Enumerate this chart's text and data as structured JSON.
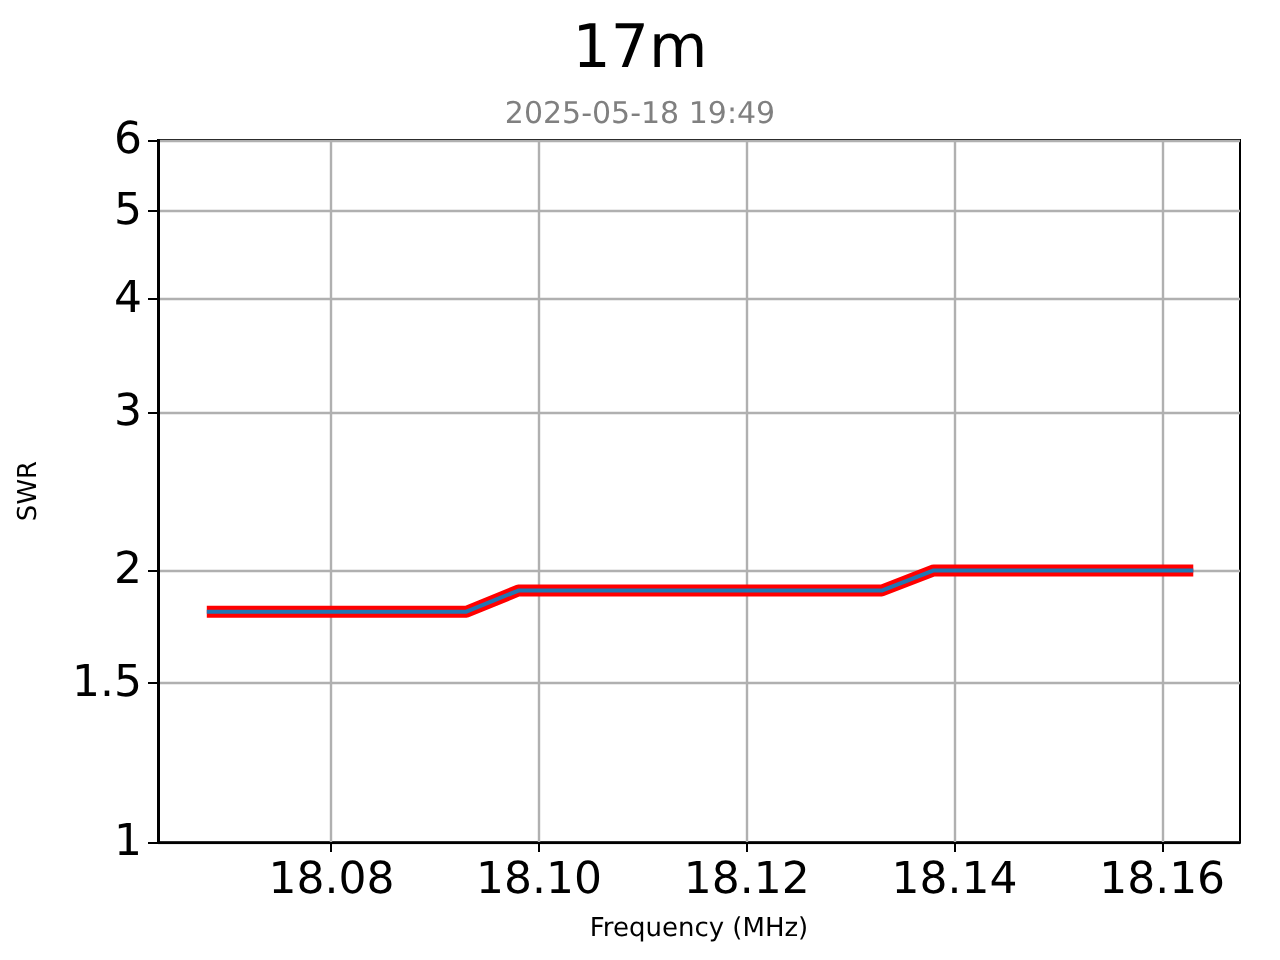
{
  "chart_data": {
    "type": "line",
    "title": "17m",
    "subtitle": "2025-05-18 19:49",
    "xlabel": "Frequency (MHz)",
    "ylabel": "SWR",
    "x": [
      18.068,
      18.073,
      18.078,
      18.083,
      18.088,
      18.093,
      18.098,
      18.103,
      18.108,
      18.113,
      18.118,
      18.123,
      18.128,
      18.133,
      18.138,
      18.143,
      18.148,
      18.153,
      18.158,
      18.163
    ],
    "series": [
      {
        "color": "#ff0000",
        "values": [
          1.8,
          1.8,
          1.8,
          1.8,
          1.8,
          1.8,
          1.9,
          1.9,
          1.9,
          1.9,
          1.9,
          1.9,
          1.9,
          1.9,
          2.0,
          2.0,
          2.0,
          2.0,
          2.0,
          2.0
        ]
      },
      {
        "color": "#1f77b4",
        "values": [
          1.8,
          1.8,
          1.8,
          1.8,
          1.8,
          1.8,
          1.9,
          1.9,
          1.9,
          1.9,
          1.9,
          1.9,
          1.9,
          1.9,
          2.0,
          2.0,
          2.0,
          2.0,
          2.0,
          2.0
        ]
      }
    ],
    "xlim": [
      18.0633,
      18.1675
    ],
    "xticks": [
      18.08,
      {
        "value": 18.1,
        "label": "18.10"
      },
      18.12,
      18.14,
      18.16
    ],
    "ylim": [
      1,
      6
    ],
    "yticks": [
      1,
      1.5,
      2,
      3,
      4,
      5,
      6
    ],
    "log": true,
    "grid": true,
    "marker": "none",
    "line_style": "solid"
  }
}
